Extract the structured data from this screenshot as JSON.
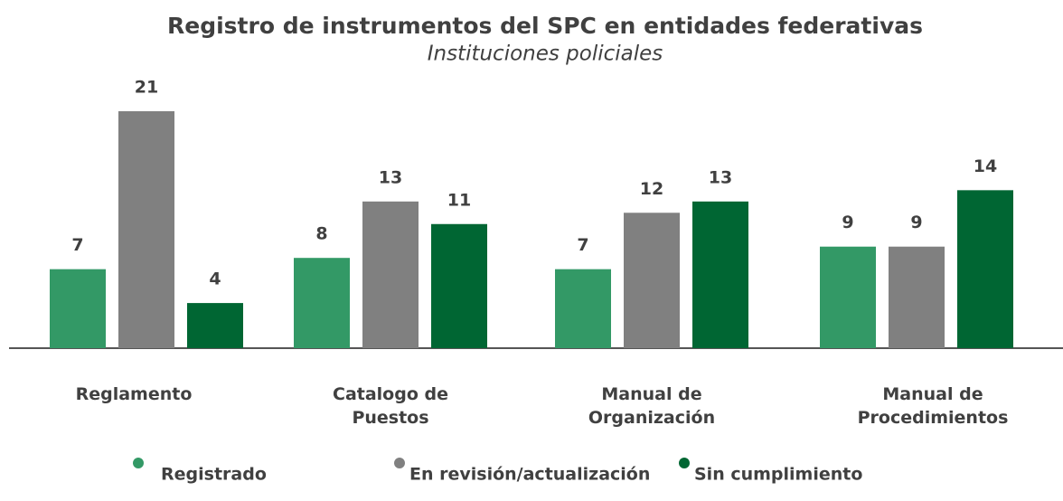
{
  "chart_data": {
    "type": "bar",
    "title": "Registro de instrumentos del SPC en entidades federativas",
    "subtitle": "Instituciones policiales",
    "categories": [
      "Reglamento",
      "Catalogo de Puestos",
      "Manual de Organización",
      "Manual de Procedimientos"
    ],
    "series": [
      {
        "name": "Registrado",
        "color": "#339966",
        "values": [
          7,
          8,
          7,
          9
        ]
      },
      {
        "name": "En revisión/actualización",
        "color": "#808080",
        "values": [
          21,
          13,
          12,
          9
        ]
      },
      {
        "name": "Sin cumplimiento",
        "color": "#006633",
        "values": [
          4,
          11,
          13,
          14
        ]
      }
    ],
    "legend": "bottom"
  }
}
